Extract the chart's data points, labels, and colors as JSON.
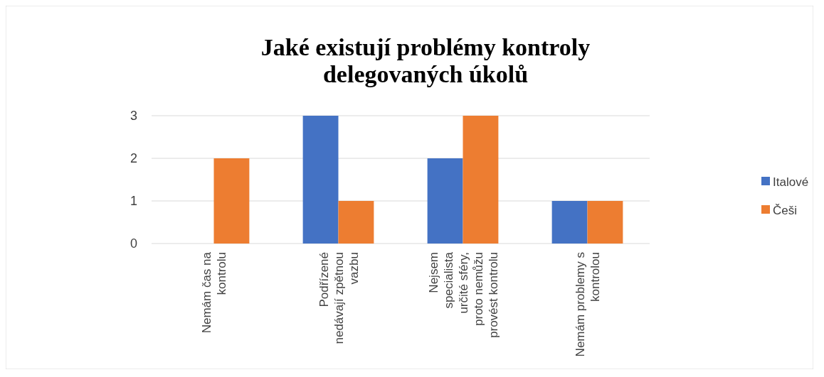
{
  "chart_data": {
    "type": "bar",
    "title": "Jaké existují problémy kontroly delegovaných úkolů",
    "categories": [
      "Nemám čas na kontrolu",
      "Podřízené nedávají zpětnou vazbu",
      "Nejsem specialista určité sféry, proto nemůžu provést kontrolu",
      "Nemám problemy s kontrolou"
    ],
    "series": [
      {
        "name": "Italové",
        "color": "#4472c4",
        "values": [
          0,
          3,
          2,
          1
        ]
      },
      {
        "name": "Češi",
        "color": "#ed7d31",
        "values": [
          2,
          1,
          3,
          1
        ]
      }
    ],
    "ylim": [
      0,
      3
    ],
    "yticks": [
      0,
      1,
      2,
      3
    ],
    "grid": "y",
    "legend": "right"
  }
}
